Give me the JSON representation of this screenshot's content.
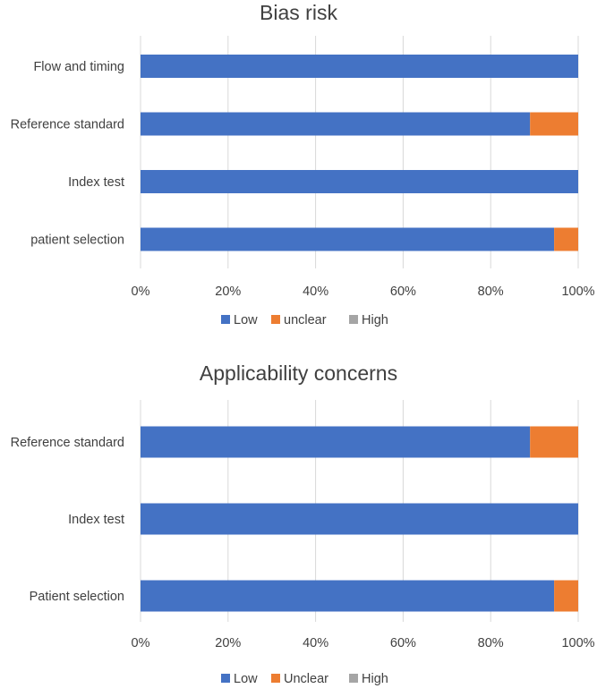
{
  "chart_data": [
    {
      "type": "bar",
      "stacked": true,
      "orientation": "horizontal",
      "title": "Bias risk",
      "categories": [
        "Flow and timing",
        "Reference standard",
        "Index test",
        "patient selection"
      ],
      "series": [
        {
          "name": "Low",
          "values": [
            100,
            89,
            100,
            94.5
          ]
        },
        {
          "name": "unclear",
          "values": [
            0,
            11,
            0,
            5.5
          ]
        },
        {
          "name": "High",
          "values": [
            0,
            0,
            0,
            0
          ]
        }
      ],
      "xlim": [
        0,
        100
      ],
      "xticks": [
        "0%",
        "20%",
        "40%",
        "60%",
        "80%",
        "100%"
      ],
      "grid": true,
      "legend": "bottom"
    },
    {
      "type": "bar",
      "stacked": true,
      "orientation": "horizontal",
      "title": "Applicability concerns",
      "categories": [
        "Reference standard",
        "Index test",
        "Patient selection"
      ],
      "series": [
        {
          "name": "Low",
          "values": [
            89,
            100,
            94.5
          ]
        },
        {
          "name": "Unclear",
          "values": [
            11,
            0,
            5.5
          ]
        },
        {
          "name": "High",
          "values": [
            0,
            0,
            0
          ]
        }
      ],
      "xlim": [
        0,
        100
      ],
      "xticks": [
        "0%",
        "20%",
        "40%",
        "60%",
        "80%",
        "100%"
      ],
      "grid": true,
      "legend": "bottom"
    }
  ],
  "colors": {
    "Low": "#4472C4",
    "Unclear": "#ED7D31",
    "High": "#A5A5A5",
    "grid": "#D9D9D9"
  }
}
